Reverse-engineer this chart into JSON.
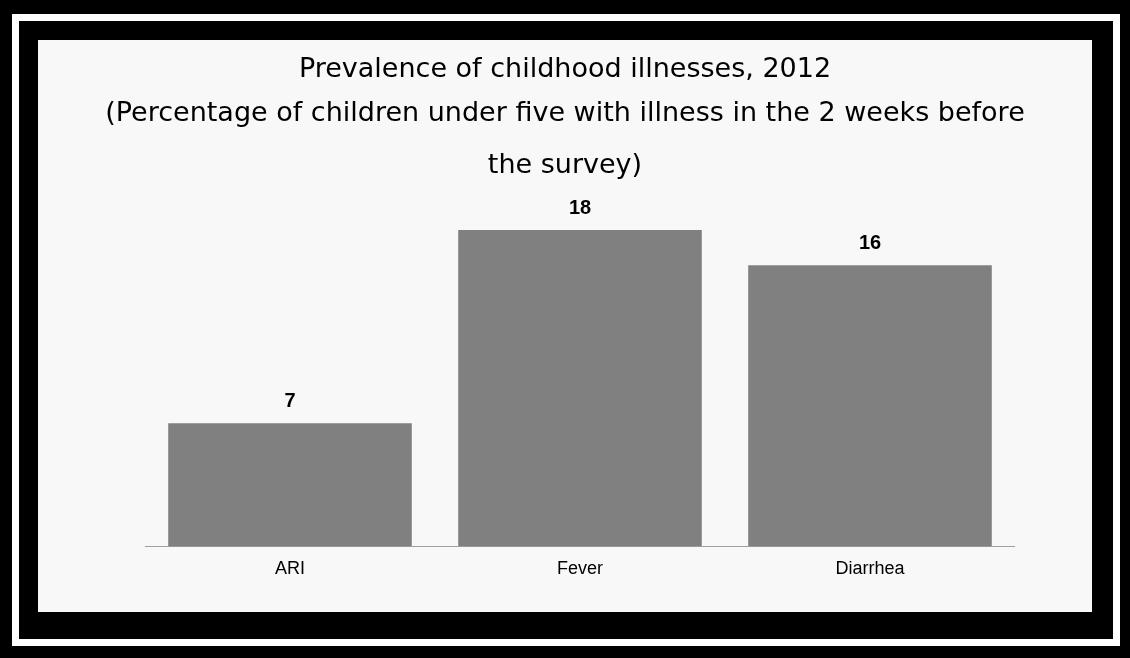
{
  "chart_data": {
    "type": "bar",
    "title": "Prevalence of childhood illnesses, 2012",
    "subtitle": "(Percentage of children under five with illness in the 2 weeks before the survey)",
    "categories": [
      "ARI",
      "Fever",
      "Diarrhea"
    ],
    "values": [
      7,
      18,
      16
    ],
    "color": "#808080",
    "data_labels": true,
    "grid": false,
    "legend": false
  }
}
